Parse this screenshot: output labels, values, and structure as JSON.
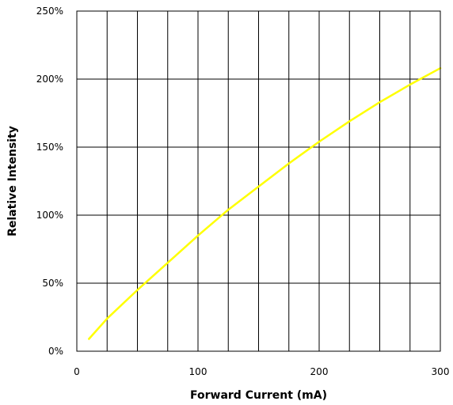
{
  "chart_data": {
    "type": "line",
    "xlabel": "Forward Current (mA)",
    "ylabel": "Relative Intensity",
    "xlim": [
      0,
      300
    ],
    "ylim": [
      0,
      250
    ],
    "x_ticks": [
      0,
      100,
      200,
      300
    ],
    "x_tick_labels": [
      "0",
      "100",
      "200",
      "300"
    ],
    "y_ticks": [
      0,
      50,
      100,
      150,
      200,
      250
    ],
    "y_tick_labels": [
      "0%",
      "50%",
      "100%",
      "150%",
      "200%",
      "250%"
    ],
    "grid": true,
    "vertical_gridlines_x": [
      0,
      25,
      50,
      75,
      100,
      125,
      150,
      175,
      200,
      225,
      250,
      275,
      300
    ],
    "horizontal_gridlines_y": [
      0,
      50,
      100,
      150,
      200,
      250
    ],
    "series": [
      {
        "color": "#ffff00",
        "x": [
          10,
          25,
          50,
          75,
          100,
          125,
          150,
          175,
          200,
          225,
          250,
          275,
          300
        ],
        "y": [
          9,
          24,
          45,
          65,
          85,
          104,
          121,
          138,
          154,
          169,
          183,
          196,
          208
        ]
      }
    ]
  }
}
